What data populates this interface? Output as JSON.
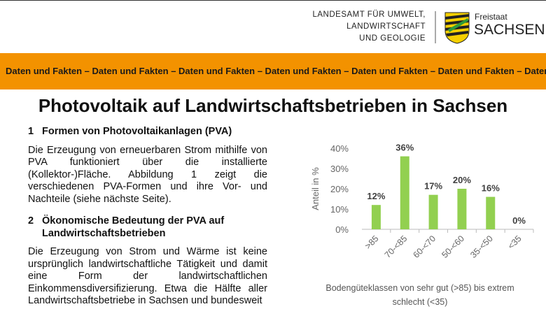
{
  "header": {
    "agency_lines": [
      "LANDESAMT FÜR UMWELT,",
      "LANDWIRTSCHAFT",
      "UND GEOLOGIE"
    ],
    "state_small": "Freistaat",
    "state_large": "SACHSEN"
  },
  "banner": "Daten und Fakten – Daten und Fakten – Daten und Fakten – Daten und Fakten – Daten und Fakten – Daten und Fakten – Daten und Fakten",
  "title": "Photovoltaik auf Landwirtschaftsbetrieben in Sachsen",
  "sections": [
    {
      "number": "1",
      "heading": "Formen von Photovoltaikanlagen (PVA)",
      "text": "Die Erzeugung von erneuerbaren Strom mithilfe von PVA funktioniert über die installierte (Kollektor-)Fläche. Abbildung 1 zeigt die verschiedenen PVA-Formen und ihre Vor- und Nachteile (siehe nächste Seite)."
    },
    {
      "number": "2",
      "heading": "Ökonomische Bedeutung der PVA auf Landwirtschaftsbetrieben",
      "text": "Die Erzeugung von Strom und Wärme ist keine ursprünglich landwirtschaftliche Tätigkeit und damit eine Form der landwirtschaftlichen Einkommensdiversifizierung. Etwa die Hälfte aller Landwirtschaftsbetriebe in Sachsen und bundesweit"
    }
  ],
  "chart_data": {
    "type": "bar",
    "categories": [
      ">85",
      "70-<85",
      "60-<70",
      "50-<60",
      "35-<50",
      "<35"
    ],
    "values": [
      12,
      36,
      17,
      20,
      16,
      0
    ],
    "value_labels": [
      "12%",
      "36%",
      "17%",
      "20%",
      "16%",
      "0%"
    ],
    "color": "#92d050",
    "ylabel": "Anteil in %",
    "xlabel": "Bodengüteklassen von sehr gut (>85) bis extrem schlecht (<35)",
    "ylim": [
      0,
      40
    ],
    "yticks": [
      {
        "value": 0,
        "label": "0%"
      },
      {
        "value": 10,
        "label": "10%"
      },
      {
        "value": 20,
        "label": "20%"
      },
      {
        "value": 30,
        "label": "30%"
      },
      {
        "value": 40,
        "label": "40%"
      }
    ]
  }
}
